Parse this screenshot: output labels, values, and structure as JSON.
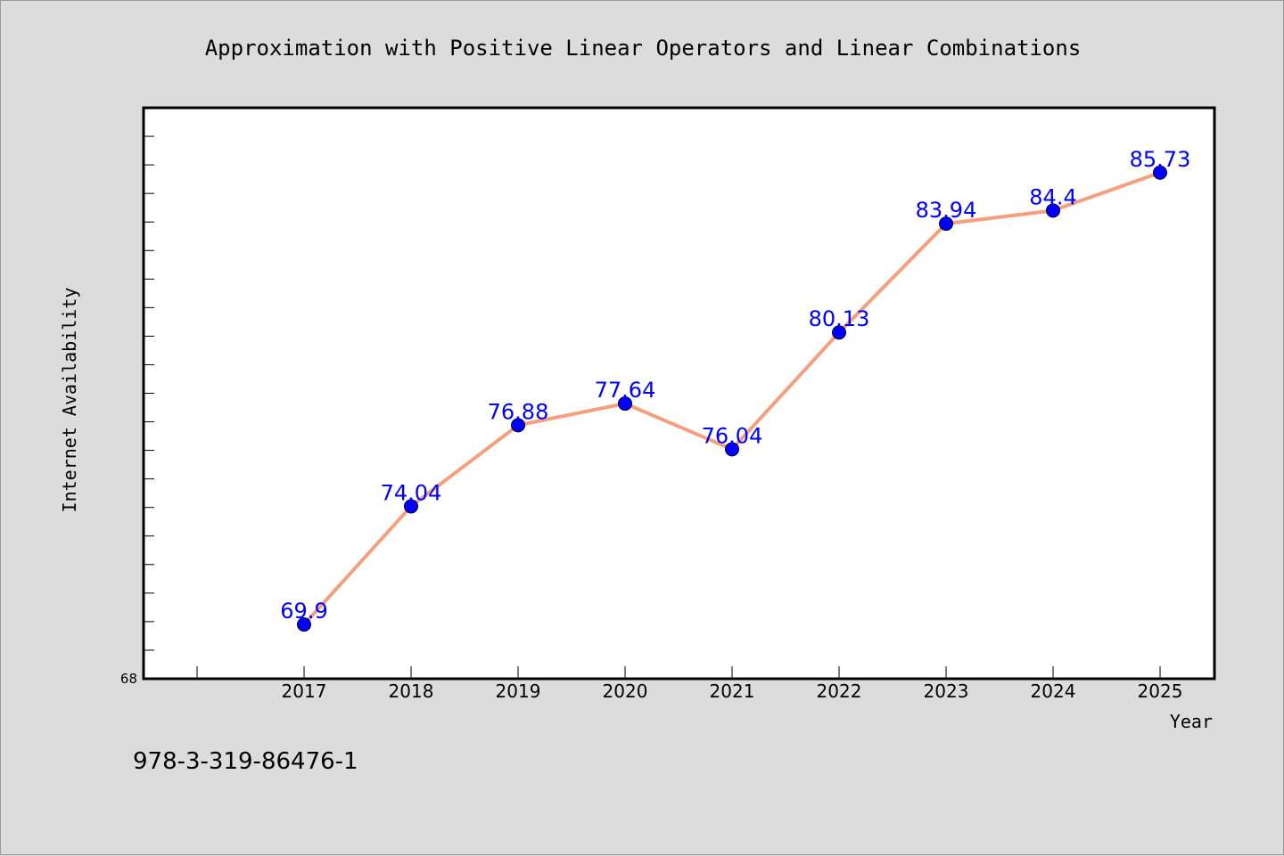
{
  "chart_data": {
    "type": "line",
    "title": "Approximation with Positive Linear Operators and Linear Combinations",
    "xlabel": "Year",
    "ylabel": "Internet Availability",
    "categories": [
      "2017",
      "2018",
      "2019",
      "2020",
      "2021",
      "2022",
      "2023",
      "2024",
      "2025"
    ],
    "series": [
      {
        "values": [
          69.9,
          74.04,
          76.88,
          77.64,
          76.04,
          80.13,
          83.94,
          84.4,
          85.73
        ],
        "labels": [
          "69.9",
          "74.04",
          "76.88",
          "77.64",
          "76.04",
          "80.13",
          "83.94",
          "84.4",
          "85.73"
        ],
        "line_color": "#f4a07f",
        "marker_color": "#0000ff"
      }
    ],
    "ylim": [
      68,
      88
    ],
    "yticks_labeled": [
      "68"
    ],
    "grid": false,
    "legend": "none",
    "label_color": "#0000ff"
  },
  "footer": {
    "isbn": "978-3-319-86476-1"
  },
  "colors": {
    "background": "#dcdcdc",
    "plot_area": "#ffffff",
    "line": "#f4a07f",
    "marker": "#0000ff",
    "data_label": "#0000ff"
  }
}
